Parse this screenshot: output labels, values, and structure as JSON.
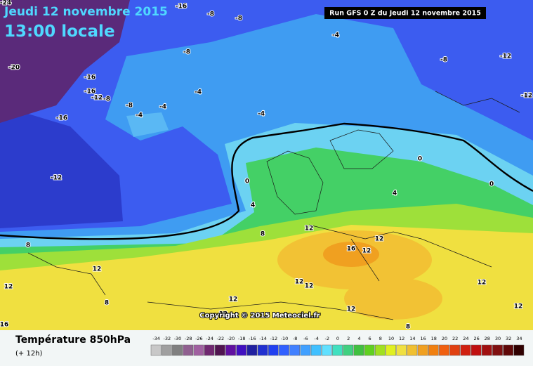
{
  "header": {
    "title": "Jeudi 12 novembre 2015",
    "time": "13:00 locale",
    "run": "Run GFS 0 Z du Jeudi 12 novembre 2015"
  },
  "map": {
    "contour_labels": [
      -24,
      -16,
      -8,
      -8,
      -4,
      -8,
      -20,
      -16,
      -16,
      -12,
      -8,
      -16,
      -8,
      -4,
      -4,
      -4,
      -4,
      -8,
      -12,
      -12,
      -12,
      0,
      4,
      0,
      0,
      4,
      8,
      8,
      12,
      12,
      16,
      12,
      12,
      12,
      8,
      12,
      12,
      12,
      12,
      12,
      12,
      8,
      12,
      16
    ],
    "copyright": "Copyright © 2015 Meteociel.fr"
  },
  "legend": {
    "title": "Température 850hPa",
    "subtitle": "(+ 12h)",
    "scale": [
      -34,
      -32,
      -30,
      -28,
      -26,
      -24,
      -22,
      -20,
      -18,
      -16,
      -14,
      -12,
      -10,
      -8,
      -6,
      -4,
      -2,
      0,
      2,
      4,
      6,
      8,
      10,
      12,
      14,
      16,
      18,
      20,
      22,
      24,
      26,
      28,
      30,
      32,
      34
    ],
    "colors": [
      "#c8c8c8",
      "#a0a0a0",
      "#808080",
      "#906090",
      "#a060a0",
      "#702870",
      "#501450",
      "#6010a0",
      "#4010c0",
      "#2020a0",
      "#2030d0",
      "#2040f0",
      "#3060ff",
      "#4080ff",
      "#40a0ff",
      "#40c0ff",
      "#60e0ff",
      "#40e0c0",
      "#40d080",
      "#40c040",
      "#60d020",
      "#a0e020",
      "#e0f020",
      "#f0e040",
      "#f0c030",
      "#f0a020",
      "#f08010",
      "#f06010",
      "#e04010",
      "#d02010",
      "#c01010",
      "#a01010",
      "#801010",
      "#600808",
      "#300000"
    ]
  }
}
